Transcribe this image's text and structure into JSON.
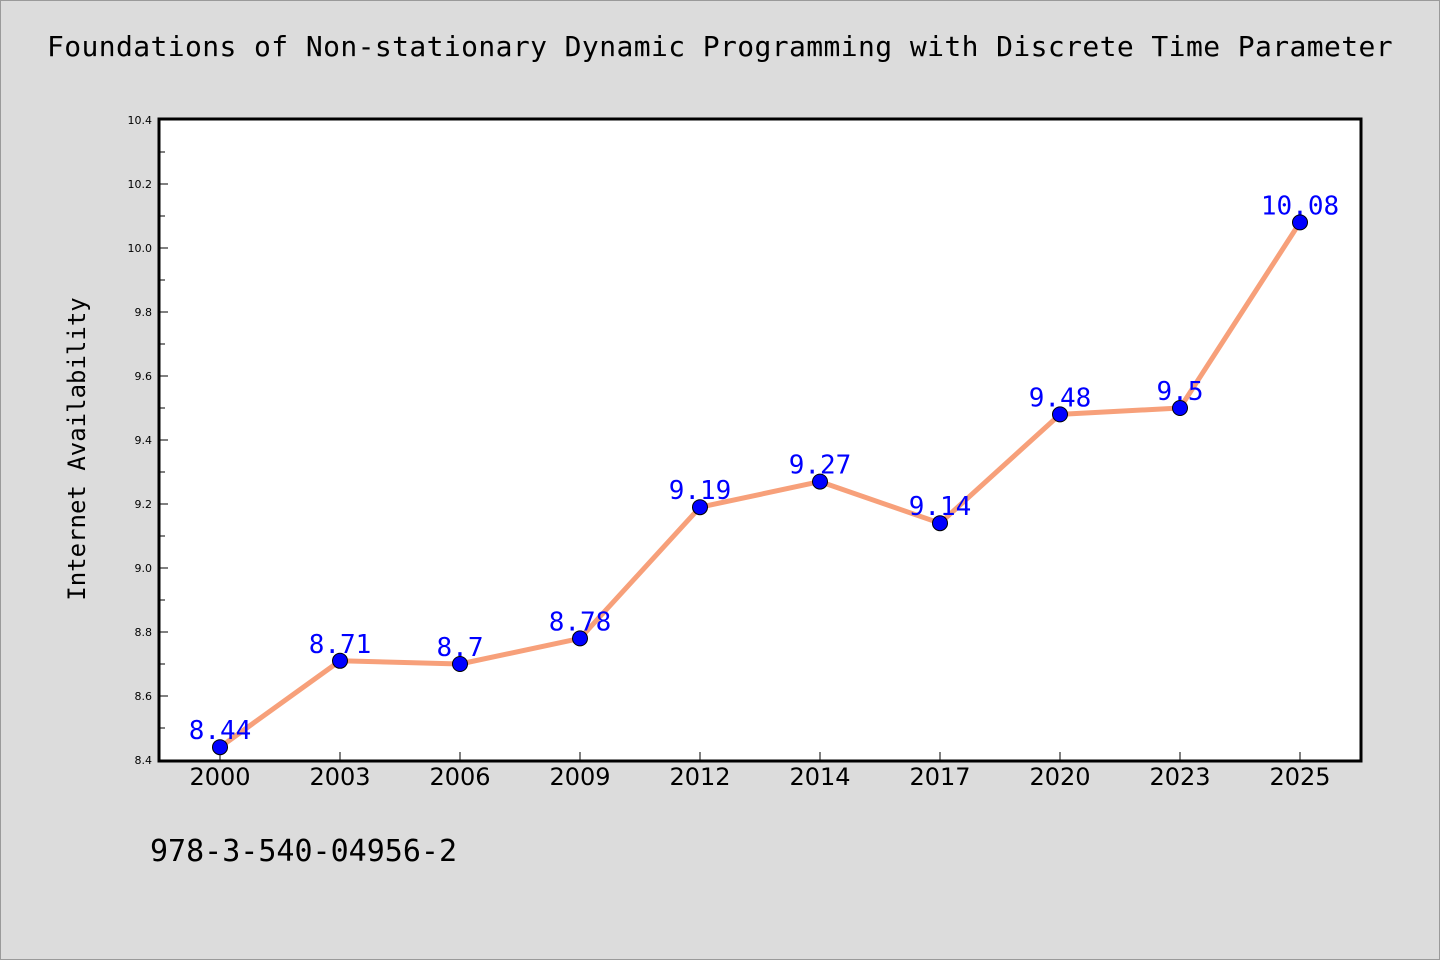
{
  "colors": {
    "background": "#dcdcdc",
    "plot_background": "#ffffff",
    "line": "#f7a07a",
    "marker": "#0000ff",
    "data_label": "#0000ff",
    "axis": "#000000"
  },
  "footer": {
    "isbn": "978-3-540-04956-2"
  },
  "chart_data": {
    "type": "line",
    "title": "Foundations of Non-stationary Dynamic Programming with Discrete Time Parameter",
    "xlabel": "",
    "ylabel": "Internet Availability",
    "categories": [
      "2000",
      "2003",
      "2006",
      "2009",
      "2012",
      "2014",
      "2017",
      "2020",
      "2023",
      "2025"
    ],
    "series": [
      {
        "values": [
          8.44,
          8.71,
          8.7,
          8.78,
          9.19,
          9.27,
          9.14,
          9.48,
          9.5,
          10.08
        ],
        "data_labels": [
          "8.44",
          "8.71",
          "8.7",
          "8.78",
          "9.19",
          "9.27",
          "9.14",
          "9.48",
          "9.5",
          "10.08"
        ]
      }
    ],
    "ylim": [
      8.4,
      10.4
    ],
    "yticks": [
      "8.4",
      "8.6",
      "8.8",
      "9.0",
      "9.2",
      "9.4",
      "9.6",
      "9.8",
      "10.0",
      "10.2",
      "10.4"
    ],
    "grid": false,
    "legend": "none"
  }
}
